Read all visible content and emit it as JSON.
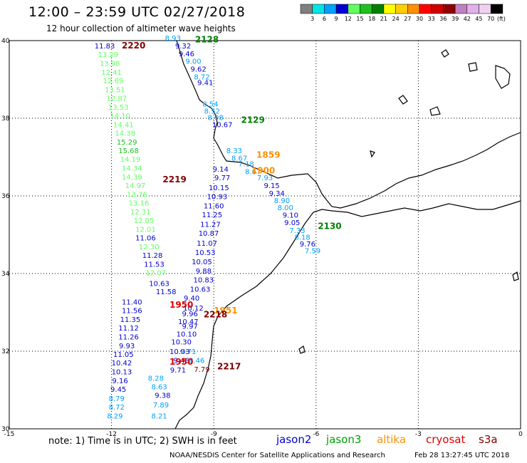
{
  "header": {
    "title": "12:00 – 23:59 UTC 02/27/2018",
    "subtitle": "12 hour collection of altimeter wave heights"
  },
  "legend": {
    "unit": "(ft)",
    "swatches": [
      {
        "color": "#808080",
        "label": "3"
      },
      {
        "color": "#00e5e5",
        "label": "6"
      },
      {
        "color": "#00a0ff",
        "label": "9"
      },
      {
        "color": "#0000d0",
        "label": "12"
      },
      {
        "color": "#60ff60",
        "label": "15"
      },
      {
        "color": "#20c020",
        "label": "18"
      },
      {
        "color": "#008000",
        "label": "21"
      },
      {
        "color": "#ffff00",
        "label": "24"
      },
      {
        "color": "#ffd000",
        "label": "27"
      },
      {
        "color": "#ff9000",
        "label": "30"
      },
      {
        "color": "#ff0000",
        "label": "33"
      },
      {
        "color": "#d00000",
        "label": "36"
      },
      {
        "color": "#900000",
        "label": "39"
      },
      {
        "color": "#c080c0",
        "label": "42"
      },
      {
        "color": "#e0b0e8",
        "label": "45"
      },
      {
        "color": "#f0d0f0",
        "label": "70"
      },
      {
        "color": "#000000",
        "label": ""
      }
    ]
  },
  "axes": {
    "x_ticks": [
      "-15",
      "-12",
      "-9",
      "-6",
      "-3",
      "0"
    ],
    "y_ticks": [
      "40",
      "38",
      "36",
      "34",
      "32",
      "30"
    ],
    "lon_range": [
      -15,
      0
    ],
    "lat_range": [
      30,
      40
    ]
  },
  "passes": [
    {
      "label": "2128",
      "color": "#008000",
      "lon": -9.55,
      "lat": 39.95
    },
    {
      "label": "2220",
      "color": "#800000",
      "lon": -11.7,
      "lat": 39.8
    },
    {
      "label": "2129",
      "color": "#008000",
      "lon": -8.2,
      "lat": 37.88
    },
    {
      "label": "1859",
      "color": "#ff9000",
      "lon": -7.75,
      "lat": 36.98
    },
    {
      "label": "1900",
      "color": "#ff9000",
      "lon": -7.9,
      "lat": 36.58
    },
    {
      "label": "2219",
      "color": "#800000",
      "lon": -10.5,
      "lat": 36.35
    },
    {
      "label": "2130",
      "color": "#008000",
      "lon": -5.95,
      "lat": 35.15
    },
    {
      "label": "1951",
      "color": "#ff9000",
      "lon": -9.0,
      "lat": 32.97
    },
    {
      "label": "1950",
      "color": "#e00000",
      "lon": -10.3,
      "lat": 33.12
    },
    {
      "label": "2218",
      "color": "#800000",
      "lon": -9.3,
      "lat": 32.87
    },
    {
      "label": "1950",
      "color": "#e00000",
      "lon": -10.3,
      "lat": 31.65
    },
    {
      "label": "2217",
      "color": "#800000",
      "lon": -8.9,
      "lat": 31.53
    }
  ],
  "values": [
    {
      "text": "8.93",
      "color": "#00a0ff",
      "lon": -10.2,
      "lat": 40.0
    },
    {
      "text": "9.32",
      "color": "#0000d0",
      "lon": -9.9,
      "lat": 39.8
    },
    {
      "text": "9.46",
      "color": "#0000d0",
      "lon": -9.8,
      "lat": 39.6
    },
    {
      "text": "9.00",
      "color": "#00a0ff",
      "lon": -9.6,
      "lat": 39.4
    },
    {
      "text": "9.62",
      "color": "#0000d0",
      "lon": -9.45,
      "lat": 39.2
    },
    {
      "text": "8.72",
      "color": "#00a0ff",
      "lon": -9.35,
      "lat": 39.0
    },
    {
      "text": "9.41",
      "color": "#0000d0",
      "lon": -9.25,
      "lat": 38.85
    },
    {
      "text": "8.54",
      "color": "#00a0ff",
      "lon": -9.1,
      "lat": 38.3
    },
    {
      "text": "8.52",
      "color": "#00a0ff",
      "lon": -9.05,
      "lat": 38.12
    },
    {
      "text": "8.98",
      "color": "#00a0ff",
      "lon": -8.95,
      "lat": 37.95
    },
    {
      "text": "10.67",
      "color": "#0000d0",
      "lon": -8.75,
      "lat": 37.77
    },
    {
      "text": "8.33",
      "color": "#00a0ff",
      "lon": -8.4,
      "lat": 37.1
    },
    {
      "text": "8.67",
      "color": "#00a0ff",
      "lon": -8.25,
      "lat": 36.91
    },
    {
      "text": "7.18",
      "color": "#00a0ff",
      "lon": -8.05,
      "lat": 36.76
    },
    {
      "text": "8.67",
      "color": "#00a0ff",
      "lon": -7.85,
      "lat": 36.56
    },
    {
      "text": "9.14",
      "color": "#0000d0",
      "lon": -8.8,
      "lat": 36.62
    },
    {
      "text": "9.77",
      "color": "#0000d0",
      "lon": -8.75,
      "lat": 36.4
    },
    {
      "text": "7.93",
      "color": "#00a0ff",
      "lon": -7.5,
      "lat": 36.4
    },
    {
      "text": "10.15",
      "color": "#0000d0",
      "lon": -8.85,
      "lat": 36.15
    },
    {
      "text": "9.15",
      "color": "#0000d0",
      "lon": -7.3,
      "lat": 36.2
    },
    {
      "text": "10.93",
      "color": "#0000d0",
      "lon": -8.9,
      "lat": 35.92
    },
    {
      "text": "9.34",
      "color": "#0000d0",
      "lon": -7.15,
      "lat": 36.0
    },
    {
      "text": "8.90",
      "color": "#00a0ff",
      "lon": -7.0,
      "lat": 35.82
    },
    {
      "text": "11.60",
      "color": "#0000d0",
      "lon": -9.0,
      "lat": 35.68
    },
    {
      "text": "8.00",
      "color": "#00a0ff",
      "lon": -6.9,
      "lat": 35.63
    },
    {
      "text": "11.25",
      "color": "#0000d0",
      "lon": -9.05,
      "lat": 35.45
    },
    {
      "text": "9.10",
      "color": "#0000d0",
      "lon": -6.75,
      "lat": 35.44
    },
    {
      "text": "9.05",
      "color": "#0000d0",
      "lon": -6.7,
      "lat": 35.25
    },
    {
      "text": "11.27",
      "color": "#0000d0",
      "lon": -9.1,
      "lat": 35.2
    },
    {
      "text": "7.33",
      "color": "#00a0ff",
      "lon": -6.55,
      "lat": 35.05
    },
    {
      "text": "10.87",
      "color": "#0000d0",
      "lon": -9.15,
      "lat": 34.97
    },
    {
      "text": "8.18",
      "color": "#00a0ff",
      "lon": -6.4,
      "lat": 34.87
    },
    {
      "text": "11.07",
      "color": "#0000d0",
      "lon": -9.2,
      "lat": 34.72
    },
    {
      "text": "9.76",
      "color": "#0000d0",
      "lon": -6.25,
      "lat": 34.7
    },
    {
      "text": "7.59",
      "color": "#00a0ff",
      "lon": -6.1,
      "lat": 34.52
    },
    {
      "text": "10.53",
      "color": "#0000d0",
      "lon": -9.25,
      "lat": 34.48
    },
    {
      "text": "10.05",
      "color": "#0000d0",
      "lon": -9.35,
      "lat": 34.24
    },
    {
      "text": "9.88",
      "color": "#0000d0",
      "lon": -9.3,
      "lat": 34.0
    },
    {
      "text": "10.83",
      "color": "#0000d0",
      "lon": -9.3,
      "lat": 33.77
    },
    {
      "text": "10.63",
      "color": "#0000d0",
      "lon": -9.4,
      "lat": 33.53
    },
    {
      "text": "10.63",
      "color": "#0000d0",
      "lon": -10.6,
      "lat": 33.68
    },
    {
      "text": "11.58",
      "color": "#0000d0",
      "lon": -10.4,
      "lat": 33.47
    },
    {
      "text": "9.40",
      "color": "#0000d0",
      "lon": -9.65,
      "lat": 33.3
    },
    {
      "text": "10.12",
      "color": "#0000d0",
      "lon": -9.6,
      "lat": 33.05
    },
    {
      "text": "9.96",
      "color": "#0000d0",
      "lon": -9.7,
      "lat": 32.9
    },
    {
      "text": "10.47",
      "color": "#0000d0",
      "lon": -9.75,
      "lat": 32.7
    },
    {
      "text": "9.97",
      "color": "#0000d0",
      "lon": -9.7,
      "lat": 32.58
    },
    {
      "text": "10.10",
      "color": "#0000d0",
      "lon": -9.8,
      "lat": 32.38
    },
    {
      "text": "10.30",
      "color": "#0000d0",
      "lon": -9.95,
      "lat": 32.17
    },
    {
      "text": "10.03",
      "color": "#0000d0",
      "lon": -10.0,
      "lat": 31.93
    },
    {
      "text": "9.71",
      "color": "#00a0ff",
      "lon": -9.75,
      "lat": 31.93
    },
    {
      "text": "9.46",
      "color": "#0000d0",
      "lon": -9.95,
      "lat": 31.7
    },
    {
      "text": "8.46",
      "color": "#00a0ff",
      "lon": -9.5,
      "lat": 31.7
    },
    {
      "text": "9.71",
      "color": "#0000d0",
      "lon": -10.05,
      "lat": 31.45
    },
    {
      "text": "7.79",
      "color": "#800000",
      "lon": -9.35,
      "lat": 31.47
    },
    {
      "text": "11.40",
      "color": "#0000d0",
      "lon": -11.4,
      "lat": 33.2
    },
    {
      "text": "11.56",
      "color": "#0000d0",
      "lon": -11.4,
      "lat": 32.98
    },
    {
      "text": "11.35",
      "color": "#0000d0",
      "lon": -11.45,
      "lat": 32.75
    },
    {
      "text": "11.12",
      "color": "#0000d0",
      "lon": -11.5,
      "lat": 32.53
    },
    {
      "text": "11.26",
      "color": "#0000d0",
      "lon": -11.5,
      "lat": 32.3
    },
    {
      "text": "9.93",
      "color": "#0000d0",
      "lon": -11.55,
      "lat": 32.07
    },
    {
      "text": "11.05",
      "color": "#0000d0",
      "lon": -11.65,
      "lat": 31.85
    },
    {
      "text": "10.42",
      "color": "#0000d0",
      "lon": -11.7,
      "lat": 31.63
    },
    {
      "text": "10.13",
      "color": "#0000d0",
      "lon": -11.7,
      "lat": 31.4
    },
    {
      "text": "9.16",
      "color": "#0000d0",
      "lon": -11.75,
      "lat": 31.17
    },
    {
      "text": "9.45",
      "color": "#0000d0",
      "lon": -11.8,
      "lat": 30.95
    },
    {
      "text": "8.79",
      "color": "#00a0ff",
      "lon": -11.85,
      "lat": 30.72
    },
    {
      "text": "8.72",
      "color": "#00a0ff",
      "lon": -11.85,
      "lat": 30.5
    },
    {
      "text": "8.29",
      "color": "#00a0ff",
      "lon": -11.9,
      "lat": 30.27
    },
    {
      "text": "8.28",
      "color": "#00a0ff",
      "lon": -10.7,
      "lat": 31.24
    },
    {
      "text": "8.63",
      "color": "#00a0ff",
      "lon": -10.6,
      "lat": 31.02
    },
    {
      "text": "9.38",
      "color": "#0000d0",
      "lon": -10.5,
      "lat": 30.8
    },
    {
      "text": "7.89",
      "color": "#00a0ff",
      "lon": -10.55,
      "lat": 30.55
    },
    {
      "text": "8.21",
      "color": "#00a0ff",
      "lon": -10.6,
      "lat": 30.27
    },
    {
      "text": "11.83",
      "color": "#0000d0",
      "lon": -12.2,
      "lat": 39.8
    },
    {
      "text": "13.29",
      "color": "#60ff60",
      "lon": -12.1,
      "lat": 39.58
    },
    {
      "text": "13.98",
      "color": "#60ff60",
      "lon": -12.05,
      "lat": 39.35
    },
    {
      "text": "12.41",
      "color": "#60ff60",
      "lon": -12.0,
      "lat": 39.12
    },
    {
      "text": "12.69",
      "color": "#60ff60",
      "lon": -11.95,
      "lat": 38.9
    },
    {
      "text": "13.51",
      "color": "#60ff60",
      "lon": -11.9,
      "lat": 38.67
    },
    {
      "text": "12.87",
      "color": "#60ff60",
      "lon": -11.85,
      "lat": 38.45
    },
    {
      "text": "13.53",
      "color": "#60ff60",
      "lon": -11.8,
      "lat": 38.22
    },
    {
      "text": "14.10",
      "color": "#60ff60",
      "lon": -11.75,
      "lat": 38.0
    },
    {
      "text": "14.41",
      "color": "#60ff60",
      "lon": -11.65,
      "lat": 37.77
    },
    {
      "text": "14.38",
      "color": "#60ff60",
      "lon": -11.6,
      "lat": 37.55
    },
    {
      "text": "15.29",
      "color": "#20c020",
      "lon": -11.55,
      "lat": 37.32
    },
    {
      "text": "15.68",
      "color": "#20c020",
      "lon": -11.5,
      "lat": 37.1
    },
    {
      "text": "14.19",
      "color": "#60ff60",
      "lon": -11.45,
      "lat": 36.88
    },
    {
      "text": "14.34",
      "color": "#60ff60",
      "lon": -11.4,
      "lat": 36.65
    },
    {
      "text": "14.39",
      "color": "#60ff60",
      "lon": -11.4,
      "lat": 36.42
    },
    {
      "text": "14.97",
      "color": "#60ff60",
      "lon": -11.3,
      "lat": 36.2
    },
    {
      "text": "13.76",
      "color": "#60ff60",
      "lon": -11.25,
      "lat": 35.97
    },
    {
      "text": "13.16",
      "color": "#60ff60",
      "lon": -11.2,
      "lat": 35.75
    },
    {
      "text": "12.31",
      "color": "#60ff60",
      "lon": -11.15,
      "lat": 35.52
    },
    {
      "text": "12.05",
      "color": "#60ff60",
      "lon": -11.05,
      "lat": 35.3
    },
    {
      "text": "12.01",
      "color": "#60ff60",
      "lon": -11.0,
      "lat": 35.07
    },
    {
      "text": "11.06",
      "color": "#0000d0",
      "lon": -11.0,
      "lat": 34.85
    },
    {
      "text": "12.30",
      "color": "#60ff60",
      "lon": -10.9,
      "lat": 34.62
    },
    {
      "text": "11.28",
      "color": "#0000d0",
      "lon": -10.8,
      "lat": 34.4
    },
    {
      "text": "11.53",
      "color": "#0000d0",
      "lon": -10.75,
      "lat": 34.17
    },
    {
      "text": "12.07",
      "color": "#60ff60",
      "lon": -10.7,
      "lat": 33.95
    }
  ],
  "footer": {
    "note": "note:  1) Time is in UTC;  2) SWH is in feet",
    "satellites": [
      {
        "name": "jason2",
        "color": "#0000d0",
        "x": 388
      },
      {
        "name": "jason3",
        "color": "#00a000",
        "x": 458
      },
      {
        "name": "altika",
        "color": "#ff9000",
        "x": 529
      },
      {
        "name": "cryosat",
        "color": "#e00000",
        "x": 598
      },
      {
        "name": "s3a",
        "color": "#800000",
        "x": 672
      }
    ],
    "credit": "NOAA/NESDIS Center for Satellite Applications and Research",
    "timestamp": "Feb 28 13:27:45 UTC 2018"
  }
}
